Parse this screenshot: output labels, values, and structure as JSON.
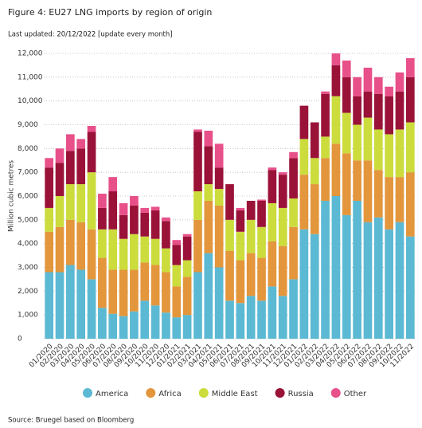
{
  "chart_data": {
    "type": "stacked_bar",
    "title": "Figure 4: EU27 LNG imports by region of origin",
    "subtitle": "Last updated: 20/12/2022 [update every month]",
    "y_label": "Million cubic metres",
    "source": "Source: Bruegel based on Bloomberg",
    "categories": [
      "01/2020",
      "02/2020",
      "03/2020",
      "04/2020",
      "05/2020",
      "06/2020",
      "07/2020",
      "08/2020",
      "09/2020",
      "10/2020",
      "11/2020",
      "12/2020",
      "01/2021",
      "02/2021",
      "03/2021",
      "04/2021",
      "05/2021",
      "06/2021",
      "07/2021",
      "08/2021",
      "09/2021",
      "10/2021",
      "11/2021",
      "12/2021",
      "01/2022",
      "02/2022",
      "03/2022",
      "04/2022",
      "05/2022",
      "06/2022",
      "07/2022",
      "08/2022",
      "09/2022",
      "10/2022",
      "11/2022"
    ],
    "series": [
      {
        "name": "America",
        "color": "#5bb9d3",
        "values": [
          2800,
          2800,
          3100,
          2900,
          2500,
          1300,
          1050,
          950,
          1150,
          1600,
          1400,
          1100,
          900,
          1000,
          2800,
          3600,
          3000,
          1600,
          1500,
          1800,
          1600,
          2200,
          1800,
          2500,
          4600,
          4400,
          5800,
          6000,
          5200,
          5800,
          4900,
          5100,
          4600,
          4900,
          4300
        ]
      },
      {
        "name": "Africa",
        "color": "#e3963c",
        "values": [
          1700,
          1900,
          1900,
          2000,
          2100,
          2100,
          1850,
          1950,
          1750,
          1600,
          1700,
          1700,
          1300,
          1600,
          2200,
          2200,
          2600,
          2100,
          1800,
          1800,
          1800,
          1900,
          2100,
          2200,
          2300,
          2100,
          1800,
          2200,
          2600,
          1700,
          2600,
          2000,
          2200,
          1900,
          2700
        ]
      },
      {
        "name": "Middle East",
        "color": "#cbdc3c",
        "values": [
          1000,
          1300,
          1500,
          1600,
          2400,
          1200,
          1700,
          1300,
          1500,
          1100,
          1100,
          1000,
          900,
          700,
          1200,
          700,
          700,
          1300,
          1200,
          1400,
          1300,
          1600,
          1600,
          1200,
          1500,
          1100,
          900,
          2000,
          1700,
          1500,
          1800,
          1700,
          1800,
          2000,
          2100
        ]
      },
      {
        "name": "Russia",
        "color": "#9a1238",
        "values": [
          1700,
          1400,
          1400,
          1500,
          1700,
          900,
          1600,
          1000,
          1200,
          1000,
          1200,
          1150,
          850,
          1000,
          2500,
          1600,
          900,
          1500,
          900,
          800,
          1100,
          1400,
          1400,
          1700,
          1400,
          1500,
          1800,
          1300,
          1500,
          1200,
          1100,
          1500,
          1600,
          1600,
          1900
        ]
      },
      {
        "name": "Other",
        "color": "#e8508a",
        "values": [
          400,
          600,
          700,
          400,
          250,
          600,
          600,
          500,
          400,
          200,
          150,
          150,
          200,
          100,
          100,
          650,
          1000,
          0,
          100,
          0,
          50,
          100,
          100,
          250,
          0,
          0,
          100,
          500,
          700,
          800,
          1000,
          700,
          400,
          800,
          800
        ]
      }
    ],
    "ylim": [
      0,
      12000
    ],
    "yticks": [
      0,
      {
        "value": 1000,
        "label": "1,000"
      },
      {
        "value": 2000,
        "label": "2,000"
      },
      {
        "value": 3000,
        "label": "3,000"
      },
      {
        "value": 4000,
        "label": "4,000"
      },
      {
        "value": 5000,
        "label": "5,000"
      },
      {
        "value": 6000,
        "label": "6,000"
      },
      {
        "value": 7000,
        "label": "7,000"
      },
      {
        "value": 8000,
        "label": "8,000"
      },
      {
        "value": 9000,
        "label": "9,000"
      },
      {
        "value": 10000,
        "label": "10,000"
      },
      {
        "value": 11000,
        "label": "11,000"
      },
      {
        "value": 12000,
        "label": "12,000"
      }
    ],
    "grid": true
  }
}
